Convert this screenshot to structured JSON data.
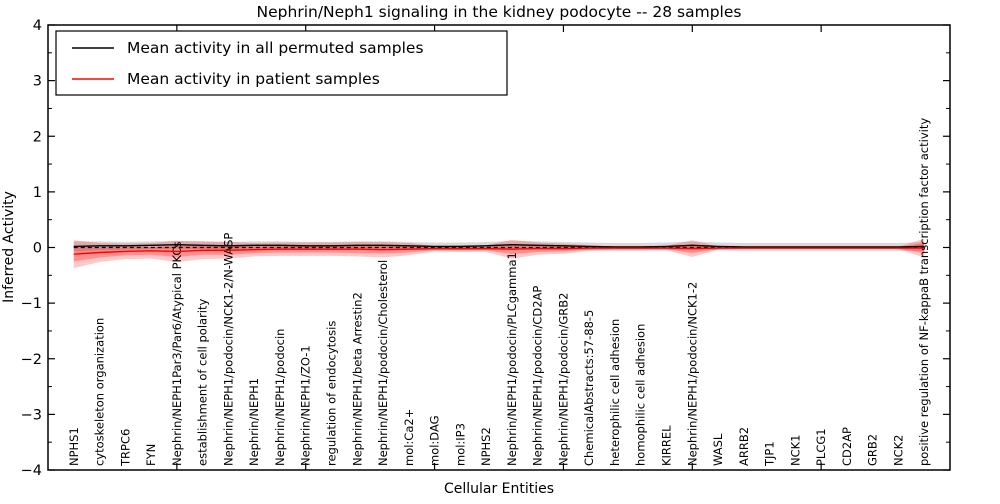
{
  "chart_data": {
    "type": "line",
    "title": "Nephrin/Neph1 signaling in the kidney podocyte -- 28 samples",
    "xlabel": "Cellular Entities",
    "ylabel": "Inferred Activity",
    "ylim": [
      -4,
      4
    ],
    "yticks": [
      -4,
      -3,
      -2,
      -1,
      0,
      1,
      2,
      3,
      4
    ],
    "ytick_labels": [
      "−4",
      "−3",
      "−2",
      "−1",
      "0",
      "1",
      "2",
      "3",
      "4"
    ],
    "y_minor_ticks": [
      -3.5,
      -2.5,
      -1.5,
      -0.5,
      0.5,
      1.5,
      2.5,
      3.5
    ],
    "x_major_ticks": [
      5,
      10,
      15,
      20,
      25,
      30
    ],
    "grid": false,
    "legend_position": "upper-left",
    "zero_line": {
      "value": 0,
      "color": "#000000",
      "style": "dashed"
    },
    "categories": [
      "NPHS1",
      "cytoskeleton organization",
      "TRPC6",
      "FYN",
      "Nephrin/NEPH1Par3/Par6/Atypical PKCs",
      "establishment of cell polarity",
      "Nephrin/NEPH1/podocin/NCK1-2/N-WASP",
      "Nephrin/NEPH1",
      "Nephrin/NEPH1/podocin",
      "Nephrin/NEPH1/ZO-1",
      "regulation of endocytosis",
      "Nephrin/NEPH1/beta Arrestin2",
      "Nephrin/NEPH1/podocin/Cholesterol",
      "mol:Ca2+",
      "mol:DAG",
      "mol:IP3",
      "NPHS2",
      "Nephrin/NEPH1/podocin/PLCgamma1",
      "Nephrin/NEPH1/podocin/CD2AP",
      "Nephrin/NEPH1/podocin/GRB2",
      "ChemicalAbstracts:57-88-5",
      "heterophilic cell adhesion",
      "homophilic cell adhesion",
      "KIRREL",
      "Nephrin/NEPH1/podocin/NCK1-2",
      "WASL",
      "ARRB2",
      "TJP1",
      "NCK1",
      "PLCG1",
      "CD2AP",
      "GRB2",
      "NCK2",
      "positive regulation of NF-kappaB transcription factor activity"
    ],
    "series": [
      {
        "name": "Mean activity in all permuted samples",
        "color": "#000000",
        "band_color": "#aaaaaa",
        "values": [
          0.02,
          0.03,
          0.03,
          0.04,
          0.05,
          0.04,
          0.03,
          0.04,
          0.04,
          0.03,
          0.03,
          0.04,
          0.04,
          0.03,
          0.02,
          0.02,
          0.03,
          0.05,
          0.04,
          0.03,
          0.02,
          0.01,
          0.01,
          0.02,
          0.04,
          0.02,
          0.01,
          0.01,
          0.01,
          0.01,
          0.01,
          0.01,
          0.01,
          0.02
        ],
        "band_halfwidth": [
          0.09,
          0.08,
          0.07,
          0.07,
          0.07,
          0.07,
          0.07,
          0.07,
          0.07,
          0.07,
          0.07,
          0.07,
          0.07,
          0.07,
          0.07,
          0.07,
          0.07,
          0.07,
          0.07,
          0.07,
          0.07,
          0.07,
          0.07,
          0.07,
          0.07,
          0.07,
          0.07,
          0.07,
          0.07,
          0.07,
          0.07,
          0.07,
          0.07,
          0.08
        ]
      },
      {
        "name": "Mean activity in patient samples",
        "color": "#ff0000",
        "band_color": "#ff0000",
        "values": [
          -0.12,
          -0.09,
          -0.07,
          -0.06,
          -0.07,
          -0.05,
          -0.05,
          -0.04,
          -0.03,
          -0.03,
          -0.03,
          -0.03,
          -0.04,
          -0.03,
          -0.02,
          -0.02,
          -0.02,
          -0.03,
          -0.02,
          -0.02,
          -0.01,
          -0.01,
          -0.01,
          -0.01,
          -0.02,
          -0.01,
          -0.01,
          -0.01,
          -0.01,
          -0.01,
          -0.01,
          -0.01,
          -0.01,
          -0.01
        ],
        "band_outer_halfwidth": [
          0.25,
          0.17,
          0.14,
          0.14,
          0.19,
          0.16,
          0.15,
          0.12,
          0.12,
          0.12,
          0.12,
          0.13,
          0.14,
          0.11,
          0.05,
          0.06,
          0.06,
          0.17,
          0.11,
          0.09,
          0.05,
          0.03,
          0.03,
          0.04,
          0.15,
          0.03,
          0.02,
          0.02,
          0.02,
          0.02,
          0.02,
          0.02,
          0.02,
          0.17
        ],
        "band_inner_halfwidth": [
          0.13,
          0.09,
          0.07,
          0.07,
          0.1,
          0.08,
          0.08,
          0.06,
          0.06,
          0.06,
          0.06,
          0.07,
          0.07,
          0.06,
          0.03,
          0.03,
          0.03,
          0.09,
          0.06,
          0.05,
          0.03,
          0.02,
          0.02,
          0.02,
          0.08,
          0.02,
          0.01,
          0.01,
          0.01,
          0.01,
          0.01,
          0.01,
          0.01,
          0.09
        ]
      }
    ]
  }
}
